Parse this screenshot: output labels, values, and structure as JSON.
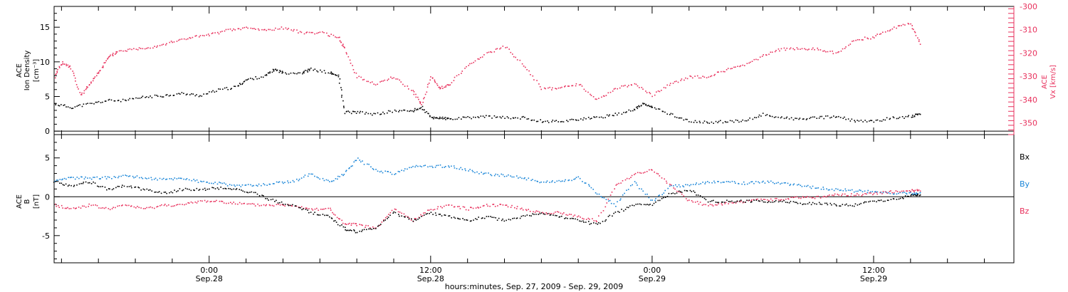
{
  "chart_data": [
    {
      "type": "scatter",
      "panel": "top",
      "xlabel": "hours:minutes, Sep. 27, 2009 - Sep. 29, 2009",
      "x_units": "hours from Sep. 27 00:00",
      "xlim": [
        15.6,
        67.6
      ],
      "x_ticks": [
        {
          "hour": 24,
          "time": "0:00",
          "date": "Sep.28"
        },
        {
          "hour": 36,
          "time": "12:00",
          "date": "Sep.28"
        },
        {
          "hour": 48,
          "time": "0:00",
          "date": "Sep.29"
        },
        {
          "hour": 60,
          "time": "12:00",
          "date": "Sep.29"
        }
      ],
      "left_axis": {
        "label_lines": [
          "ACE",
          "Ion Density",
          "[cm⁻³]"
        ],
        "ylim": [
          -0.5,
          18
        ],
        "ticks": [
          0,
          5,
          10,
          15
        ]
      },
      "right_axis": {
        "label_lines": [
          "ACE",
          "Vx [km/s]"
        ],
        "ylim": [
          -355,
          -300
        ],
        "ticks": [
          -300,
          -310,
          -320,
          -330,
          -340,
          -350
        ],
        "color": "#e8305c"
      },
      "colors": {
        "density": "#000000",
        "velocity": "#e8305c"
      },
      "series": [
        {
          "axis": "left",
          "color": "#000000",
          "points": [
            [
              15.6,
              4.0
            ],
            [
              16.5,
              3.5
            ],
            [
              17.5,
              4.0
            ],
            [
              18.5,
              4.5
            ],
            [
              19.5,
              4.5
            ],
            [
              20.5,
              5.0
            ],
            [
              21.5,
              5.2
            ],
            [
              22.5,
              5.5
            ],
            [
              23.5,
              5.2
            ],
            [
              24.5,
              6.0
            ],
            [
              25.5,
              6.5
            ],
            [
              26.0,
              7.5
            ],
            [
              27.0,
              8.0
            ],
            [
              27.5,
              9.0
            ],
            [
              28.0,
              8.5
            ],
            [
              29.0,
              8.5
            ],
            [
              29.5,
              9.0
            ],
            [
              30.5,
              8.5
            ],
            [
              31.0,
              8.0
            ],
            [
              31.3,
              2.8
            ],
            [
              32.0,
              2.8
            ],
            [
              33.0,
              2.5
            ],
            [
              34.0,
              3.0
            ],
            [
              35.0,
              3.0
            ],
            [
              35.5,
              3.5
            ],
            [
              36.0,
              2.0
            ],
            [
              36.5,
              2.0
            ],
            [
              37.0,
              1.8
            ],
            [
              38.0,
              2.0
            ],
            [
              39.0,
              2.2
            ],
            [
              40.0,
              2.0
            ],
            [
              41.0,
              2.0
            ],
            [
              42.0,
              1.5
            ],
            [
              43.0,
              1.5
            ],
            [
              44.0,
              1.8
            ],
            [
              45.0,
              2.0
            ],
            [
              46.0,
              2.5
            ],
            [
              47.0,
              3.2
            ],
            [
              47.5,
              4.0
            ],
            [
              48.0,
              3.5
            ],
            [
              49.0,
              2.5
            ],
            [
              50.0,
              1.5
            ],
            [
              51.0,
              1.3
            ],
            [
              52.0,
              1.5
            ],
            [
              53.0,
              1.5
            ],
            [
              54.0,
              2.5
            ],
            [
              55.0,
              2.0
            ],
            [
              56.0,
              1.8
            ],
            [
              57.0,
              2.0
            ],
            [
              58.0,
              2.2
            ],
            [
              59.0,
              1.5
            ],
            [
              60.0,
              1.5
            ],
            [
              61.0,
              2.0
            ],
            [
              62.0,
              2.2
            ],
            [
              62.5,
              2.5
            ]
          ]
        },
        {
          "axis": "right",
          "color": "#e8305c",
          "points": [
            [
              15.6,
              -330
            ],
            [
              16.0,
              -324
            ],
            [
              16.5,
              -326
            ],
            [
              17.0,
              -338
            ],
            [
              17.5,
              -333
            ],
            [
              18.0,
              -328
            ],
            [
              18.5,
              -322
            ],
            [
              19.0,
              -319
            ],
            [
              20.0,
              -318
            ],
            [
              21.0,
              -317
            ],
            [
              22.0,
              -315
            ],
            [
              23.0,
              -313
            ],
            [
              24.0,
              -312
            ],
            [
              25.0,
              -310
            ],
            [
              26.0,
              -309
            ],
            [
              27.0,
              -310
            ],
            [
              28.0,
              -309
            ],
            [
              29.0,
              -311
            ],
            [
              30.0,
              -311
            ],
            [
              31.0,
              -313
            ],
            [
              31.3,
              -318
            ],
            [
              32.0,
              -330
            ],
            [
              33.0,
              -333
            ],
            [
              34.0,
              -330
            ],
            [
              35.0,
              -336
            ],
            [
              35.5,
              -342
            ],
            [
              36.0,
              -330
            ],
            [
              36.5,
              -335
            ],
            [
              37.0,
              -333
            ],
            [
              38.0,
              -325
            ],
            [
              39.0,
              -320
            ],
            [
              40.0,
              -317
            ],
            [
              41.0,
              -325
            ],
            [
              42.0,
              -335
            ],
            [
              43.0,
              -335
            ],
            [
              44.0,
              -333
            ],
            [
              45.0,
              -340
            ],
            [
              46.0,
              -335
            ],
            [
              47.0,
              -333
            ],
            [
              48.0,
              -338
            ],
            [
              49.0,
              -333
            ],
            [
              50.0,
              -330
            ],
            [
              51.0,
              -330
            ],
            [
              52.0,
              -327
            ],
            [
              53.0,
              -325
            ],
            [
              54.0,
              -321
            ],
            [
              55.0,
              -318
            ],
            [
              56.0,
              -318
            ],
            [
              57.0,
              -318
            ],
            [
              58.0,
              -320
            ],
            [
              59.0,
              -314
            ],
            [
              60.0,
              -313
            ],
            [
              61.0,
              -309
            ],
            [
              62.0,
              -307
            ],
            [
              62.5,
              -316
            ]
          ]
        }
      ]
    },
    {
      "type": "scatter",
      "panel": "bottom",
      "xlim": [
        15.6,
        67.6
      ],
      "left_axis": {
        "label_lines": [
          "ACE",
          "B",
          "[nT]"
        ],
        "ylim": [
          -8.5,
          8
        ],
        "ticks": [
          -5,
          0,
          5
        ]
      },
      "legend_position": "right",
      "series": [
        {
          "name": "Bx",
          "color": "#000000",
          "points": [
            [
              15.6,
              2.0
            ],
            [
              16.5,
              1.5
            ],
            [
              17.5,
              2.0
            ],
            [
              18.5,
              1.0
            ],
            [
              19.5,
              1.5
            ],
            [
              20.5,
              1.0
            ],
            [
              21.5,
              0.5
            ],
            [
              22.5,
              1.0
            ],
            [
              23.5,
              1.0
            ],
            [
              24.5,
              1.2
            ],
            [
              25.5,
              1.0
            ],
            [
              26.5,
              0.5
            ],
            [
              27.5,
              -0.5
            ],
            [
              28.5,
              -1.0
            ],
            [
              29.5,
              -2.0
            ],
            [
              30.5,
              -2.5
            ],
            [
              31.3,
              -4.0
            ],
            [
              32.0,
              -4.5
            ],
            [
              33.0,
              -4.0
            ],
            [
              34.0,
              -2.0
            ],
            [
              35.0,
              -3.0
            ],
            [
              36.0,
              -2.0
            ],
            [
              37.0,
              -2.5
            ],
            [
              38.0,
              -3.0
            ],
            [
              39.0,
              -2.5
            ],
            [
              40.0,
              -3.0
            ],
            [
              41.0,
              -2.5
            ],
            [
              42.0,
              -2.0
            ],
            [
              43.0,
              -2.5
            ],
            [
              44.0,
              -3.0
            ],
            [
              45.0,
              -3.5
            ],
            [
              46.0,
              -2.0
            ],
            [
              47.0,
              -1.0
            ],
            [
              48.0,
              -1.0
            ],
            [
              49.0,
              0.5
            ],
            [
              50.0,
              1.0
            ],
            [
              51.0,
              -0.5
            ],
            [
              52.0,
              -0.5
            ],
            [
              53.0,
              -0.5
            ],
            [
              54.0,
              -0.5
            ],
            [
              55.0,
              -0.5
            ],
            [
              56.0,
              -0.8
            ],
            [
              57.0,
              -0.8
            ],
            [
              58.0,
              -1.0
            ],
            [
              59.0,
              -1.0
            ],
            [
              60.0,
              -0.5
            ],
            [
              61.0,
              -0.3
            ],
            [
              62.0,
              0.2
            ],
            [
              62.5,
              0.3
            ]
          ]
        },
        {
          "name": "By",
          "color": "#1a86d8",
          "points": [
            [
              15.6,
              2.0
            ],
            [
              16.5,
              2.5
            ],
            [
              17.5,
              2.5
            ],
            [
              18.5,
              2.5
            ],
            [
              19.5,
              2.8
            ],
            [
              20.5,
              2.5
            ],
            [
              21.5,
              2.3
            ],
            [
              22.5,
              2.5
            ],
            [
              23.5,
              2.0
            ],
            [
              24.5,
              1.8
            ],
            [
              25.5,
              1.5
            ],
            [
              26.5,
              1.5
            ],
            [
              27.5,
              1.8
            ],
            [
              28.5,
              2.0
            ],
            [
              29.5,
              3.0
            ],
            [
              30.5,
              2.0
            ],
            [
              31.3,
              3.0
            ],
            [
              32.0,
              5.0
            ],
            [
              33.0,
              3.5
            ],
            [
              34.0,
              3.0
            ],
            [
              35.0,
              4.0
            ],
            [
              36.0,
              4.0
            ],
            [
              37.0,
              4.0
            ],
            [
              38.0,
              3.5
            ],
            [
              39.0,
              3.0
            ],
            [
              40.0,
              2.8
            ],
            [
              41.0,
              2.5
            ],
            [
              42.0,
              2.0
            ],
            [
              43.0,
              2.0
            ],
            [
              44.0,
              2.5
            ],
            [
              45.0,
              0.5
            ],
            [
              46.0,
              -1.0
            ],
            [
              47.0,
              2.0
            ],
            [
              48.0,
              -0.5
            ],
            [
              49.0,
              1.5
            ],
            [
              50.0,
              1.5
            ],
            [
              51.0,
              2.0
            ],
            [
              52.0,
              2.0
            ],
            [
              53.0,
              1.8
            ],
            [
              54.0,
              2.0
            ],
            [
              55.0,
              1.8
            ],
            [
              56.0,
              1.5
            ],
            [
              57.0,
              1.2
            ],
            [
              58.0,
              1.0
            ],
            [
              59.0,
              0.8
            ],
            [
              60.0,
              0.7
            ],
            [
              61.0,
              0.5
            ],
            [
              62.0,
              0.5
            ],
            [
              62.5,
              0.6
            ]
          ]
        },
        {
          "name": "Bz",
          "color": "#e8305c",
          "points": [
            [
              15.6,
              -1.0
            ],
            [
              16.5,
              -1.5
            ],
            [
              17.5,
              -1.0
            ],
            [
              18.5,
              -1.5
            ],
            [
              19.5,
              -1.0
            ],
            [
              20.5,
              -1.5
            ],
            [
              21.5,
              -1.0
            ],
            [
              22.5,
              -1.0
            ],
            [
              23.5,
              -0.5
            ],
            [
              24.5,
              -0.5
            ],
            [
              25.5,
              -0.8
            ],
            [
              26.5,
              -1.0
            ],
            [
              27.5,
              -1.0
            ],
            [
              28.5,
              -1.0
            ],
            [
              29.5,
              -1.5
            ],
            [
              30.5,
              -1.5
            ],
            [
              31.3,
              -3.5
            ],
            [
              32.0,
              -3.5
            ],
            [
              33.0,
              -4.0
            ],
            [
              34.0,
              -1.5
            ],
            [
              35.0,
              -3.0
            ],
            [
              36.0,
              -1.5
            ],
            [
              37.0,
              -1.0
            ],
            [
              38.0,
              -1.5
            ],
            [
              39.0,
              -1.0
            ],
            [
              40.0,
              -1.0
            ],
            [
              41.0,
              -1.5
            ],
            [
              42.0,
              -2.0
            ],
            [
              43.0,
              -2.0
            ],
            [
              44.0,
              -2.5
            ],
            [
              45.0,
              -3.0
            ],
            [
              46.0,
              1.5
            ],
            [
              47.0,
              3.0
            ],
            [
              48.0,
              3.5
            ],
            [
              49.0,
              1.5
            ],
            [
              50.0,
              -0.5
            ],
            [
              51.0,
              -1.0
            ],
            [
              52.0,
              -0.8
            ],
            [
              53.0,
              -0.5
            ],
            [
              54.0,
              -0.3
            ],
            [
              55.0,
              -0.3
            ],
            [
              56.0,
              0.0
            ],
            [
              57.0,
              0.0
            ],
            [
              58.0,
              0.3
            ],
            [
              59.0,
              0.3
            ],
            [
              60.0,
              0.5
            ],
            [
              61.0,
              0.7
            ],
            [
              62.0,
              0.9
            ],
            [
              62.5,
              0.8
            ]
          ]
        }
      ]
    }
  ]
}
